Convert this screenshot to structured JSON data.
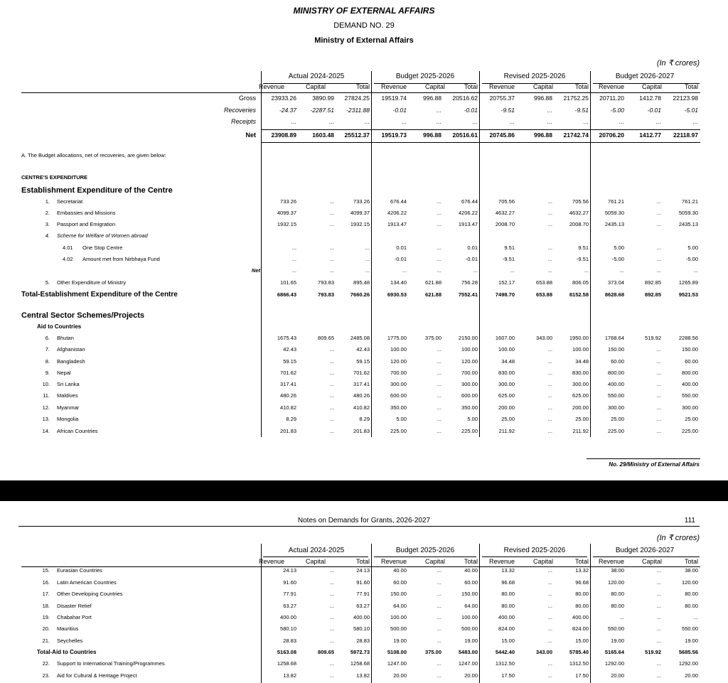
{
  "header": {
    "title": "MINISTRY OF EXTERNAL AFFAIRS",
    "demand": "DEMAND NO. 29",
    "ministry": "Ministry of External Affairs"
  },
  "units": "(In ₹ crores)",
  "periods": [
    "Actual 2024-2025",
    "Budget 2025-2026",
    "Revised 2025-2026",
    "Budget 2026-2027"
  ],
  "columns": [
    "Revenue",
    "Capital",
    "Total"
  ],
  "summary": [
    {
      "label": "Gross",
      "values": [
        "23933.26",
        "3890.99",
        "27824.25",
        "19519.74",
        "996.88",
        "20516.62",
        "20755.37",
        "996.88",
        "21752.25",
        "20711.20",
        "1412.78",
        "22123.98"
      ]
    },
    {
      "label": "Recoveries",
      "values": [
        "-24.37",
        "-2287.51",
        "-2311.88",
        "-0.01",
        "...",
        "-0.01",
        "-9.51",
        "...",
        "-9.51",
        "-5.00",
        "-0.01",
        "-5.01"
      ]
    },
    {
      "label": "Receipts",
      "values": [
        "...",
        "...",
        "...",
        "...",
        "...",
        "...",
        "...",
        "...",
        "...",
        "...",
        "...",
        "..."
      ]
    },
    {
      "label": "Net",
      "values": [
        "23908.89",
        "1603.48",
        "25512.37",
        "19519.73",
        "996.88",
        "20516.61",
        "20745.86",
        "996.88",
        "21742.74",
        "20706.20",
        "1412.77",
        "22118.97"
      ]
    }
  ],
  "note": "A. The Budget allocations, net of recoveries, are given below:",
  "page1_rows": [
    {
      "style": "section",
      "label": "CENTRE'S EXPENDITURE"
    },
    {
      "style": "heading",
      "label": "Establishment Expenditure of the Centre"
    },
    {
      "style": "item",
      "num": "1.",
      "label": "Secretariat",
      "values": [
        "733.26",
        "...",
        "733.26",
        "676.44",
        "...",
        "676.44",
        "705.56",
        "...",
        "705.56",
        "761.21",
        "...",
        "761.21"
      ]
    },
    {
      "style": "item",
      "num": "2.",
      "label": "Embassies and Missions",
      "values": [
        "4099.37",
        "...",
        "4099.37",
        "4206.22",
        "...",
        "4206.22",
        "4632.27",
        "...",
        "4632.27",
        "5059.30",
        "...",
        "5059.30"
      ]
    },
    {
      "style": "item",
      "num": "3.",
      "label": "Passport and Emigration",
      "values": [
        "1932.15",
        "...",
        "1932.15",
        "1913.47",
        "...",
        "1913.47",
        "2008.70",
        "...",
        "2008.70",
        "2435.13",
        "...",
        "2435.13"
      ]
    },
    {
      "style": "scheme",
      "num": "4.",
      "label": "Scheme for Welfare of Women abroad"
    },
    {
      "style": "subitem",
      "num": "4.01",
      "label": "One Stop Centre",
      "values": [
        "...",
        "...",
        "...",
        "0.01",
        "...",
        "0.01",
        "9.51",
        "...",
        "9.51",
        "5.00",
        "...",
        "5.00"
      ]
    },
    {
      "style": "subitem",
      "num": "4.02",
      "label": "Amount met from Nirbhaya Fund",
      "values": [
        "...",
        "...",
        "...",
        "-0.01",
        "...",
        "-0.01",
        "-9.51",
        "...",
        "-9.51",
        "-5.00",
        "...",
        "-5.00"
      ]
    },
    {
      "style": "net",
      "label": "Net",
      "values": [
        "...",
        "...",
        "...",
        "...",
        "...",
        "...",
        "...",
        "...",
        "...",
        "...",
        "...",
        "..."
      ]
    },
    {
      "style": "item",
      "num": "5.",
      "label": "Other Expenditure of Ministry",
      "values": [
        "101.65",
        "793.83",
        "895.48",
        "134.40",
        "621.88",
        "756.28",
        "152.17",
        "653.88",
        "806.05",
        "373.04",
        "892.85",
        "1265.89"
      ]
    },
    {
      "style": "total",
      "label": "Total-Establishment Expenditure of the Centre",
      "values": [
        "6866.43",
        "793.83",
        "7660.26",
        "6930.53",
        "621.88",
        "7552.41",
        "7498.70",
        "653.88",
        "8152.58",
        "8628.68",
        "892.85",
        "9521.53"
      ]
    },
    {
      "style": "heading",
      "label": "Central Sector Schemes/Projects"
    },
    {
      "style": "group",
      "label": "Aid to Countries"
    },
    {
      "style": "item",
      "num": "6.",
      "label": "Bhutan",
      "values": [
        "1675.43",
        "809.65",
        "2485.08",
        "1775.00",
        "375.00",
        "2150.00",
        "1607.00",
        "343.00",
        "1950.00",
        "1768.64",
        "519.92",
        "2288.56"
      ]
    },
    {
      "style": "item",
      "num": "7.",
      "label": "Afghanistan",
      "values": [
        "42.43",
        "...",
        "42.43",
        "100.00",
        "...",
        "100.00",
        "100.00",
        "...",
        "100.00",
        "150.00",
        "...",
        "150.00"
      ]
    },
    {
      "style": "item",
      "num": "8.",
      "label": "Bangladesh",
      "values": [
        "59.15",
        "...",
        "59.15",
        "120.00",
        "...",
        "120.00",
        "34.48",
        "...",
        "34.48",
        "60.00",
        "...",
        "60.00"
      ]
    },
    {
      "style": "item",
      "num": "9.",
      "label": "Nepal",
      "values": [
        "701.62",
        "...",
        "701.62",
        "700.00",
        "...",
        "700.00",
        "830.00",
        "...",
        "830.00",
        "800.00",
        "...",
        "800.00"
      ]
    },
    {
      "style": "item",
      "num": "10.",
      "label": "Sri Lanka",
      "values": [
        "317.41",
        "...",
        "317.41",
        "300.00",
        "...",
        "300.00",
        "300.00",
        "...",
        "300.00",
        "400.00",
        "...",
        "400.00"
      ]
    },
    {
      "style": "item",
      "num": "11.",
      "label": "Maldives",
      "values": [
        "480.26",
        "...",
        "480.26",
        "600.00",
        "...",
        "600.00",
        "625.00",
        "...",
        "625.00",
        "550.00",
        "...",
        "550.00"
      ]
    },
    {
      "style": "item",
      "num": "12.",
      "label": "Myanmar",
      "values": [
        "410.82",
        "...",
        "410.82",
        "350.00",
        "...",
        "350.00",
        "200.00",
        "...",
        "200.00",
        "300.00",
        "...",
        "300.00"
      ]
    },
    {
      "style": "item",
      "num": "13.",
      "label": "Mongolia",
      "values": [
        "8.29",
        "...",
        "8.29",
        "5.00",
        "...",
        "5.00",
        "25.00",
        "...",
        "25.00",
        "25.00",
        "...",
        "25.00"
      ]
    },
    {
      "style": "item",
      "num": "14.",
      "label": "African Countries",
      "values": [
        "201.83",
        "...",
        "201.83",
        "225.00",
        "...",
        "225.00",
        "211.92",
        "...",
        "211.92",
        "225.00",
        "...",
        "225.00"
      ]
    }
  ],
  "footer": "No. 29/Ministry of External Affairs",
  "page2_header": {
    "title": "Notes on Demands for Grants, 2026-2027",
    "page": "111"
  },
  "page2_rows": [
    {
      "style": "item",
      "num": "15.",
      "label": "Eurasian Countries",
      "values": [
        "24.13",
        "...",
        "24.13",
        "40.00",
        "...",
        "40.00",
        "13.32",
        "...",
        "13.32",
        "38.00",
        "...",
        "38.00"
      ]
    },
    {
      "style": "item",
      "num": "16.",
      "label": "Latin American Countries",
      "values": [
        "91.60",
        "...",
        "91.60",
        "60.00",
        "...",
        "60.00",
        "96.68",
        "...",
        "96.68",
        "120.00",
        "...",
        "120.00"
      ]
    },
    {
      "style": "item",
      "num": "17.",
      "label": "Other Developing Countries",
      "values": [
        "77.91",
        "...",
        "77.91",
        "150.00",
        "...",
        "150.00",
        "80.00",
        "...",
        "80.00",
        "80.00",
        "...",
        "80.00"
      ]
    },
    {
      "style": "item",
      "num": "18.",
      "label": "Disaster Relief",
      "values": [
        "63.27",
        "...",
        "63.27",
        "64.00",
        "...",
        "64.00",
        "80.00",
        "...",
        "80.00",
        "80.00",
        "...",
        "80.00"
      ]
    },
    {
      "style": "item",
      "num": "19.",
      "label": "Chabahar Port",
      "values": [
        "400.00",
        "...",
        "400.00",
        "100.00",
        "...",
        "100.00",
        "400.00",
        "...",
        "400.00",
        "...",
        "...",
        "..."
      ]
    },
    {
      "style": "item",
      "num": "20.",
      "label": "Mauritius",
      "values": [
        "580.10",
        "...",
        "580.10",
        "500.00",
        "...",
        "500.00",
        "824.00",
        "...",
        "824.00",
        "550.00",
        "...",
        "550.00"
      ]
    },
    {
      "style": "item",
      "num": "21.",
      "label": "Seychelles",
      "values": [
        "28.83",
        "...",
        "28.83",
        "19.00",
        "...",
        "19.00",
        "15.00",
        "...",
        "15.00",
        "19.00",
        "...",
        "19.00"
      ]
    },
    {
      "style": "subtotal",
      "label": "Total-Aid to Countries",
      "values": [
        "5163.08",
        "809.65",
        "5972.73",
        "5108.00",
        "375.00",
        "5483.00",
        "5442.40",
        "343.00",
        "5785.40",
        "5165.64",
        "519.92",
        "5685.56"
      ]
    },
    {
      "style": "item",
      "num": "22.",
      "label": "Support to International Training/Programmes",
      "values": [
        "1258.68",
        "...",
        "1258.68",
        "1247.00",
        "...",
        "1247.00",
        "1312.50",
        "...",
        "1312.50",
        "1292.00",
        "...",
        "1292.00"
      ]
    },
    {
      "style": "item",
      "num": "23.",
      "label": "Aid for Cultural & Heritage Project",
      "values": [
        "13.82",
        "...",
        "13.82",
        "20.00",
        "...",
        "20.00",
        "17.50",
        "...",
        "17.50",
        "20.00",
        "...",
        "20.00"
      ]
    }
  ]
}
